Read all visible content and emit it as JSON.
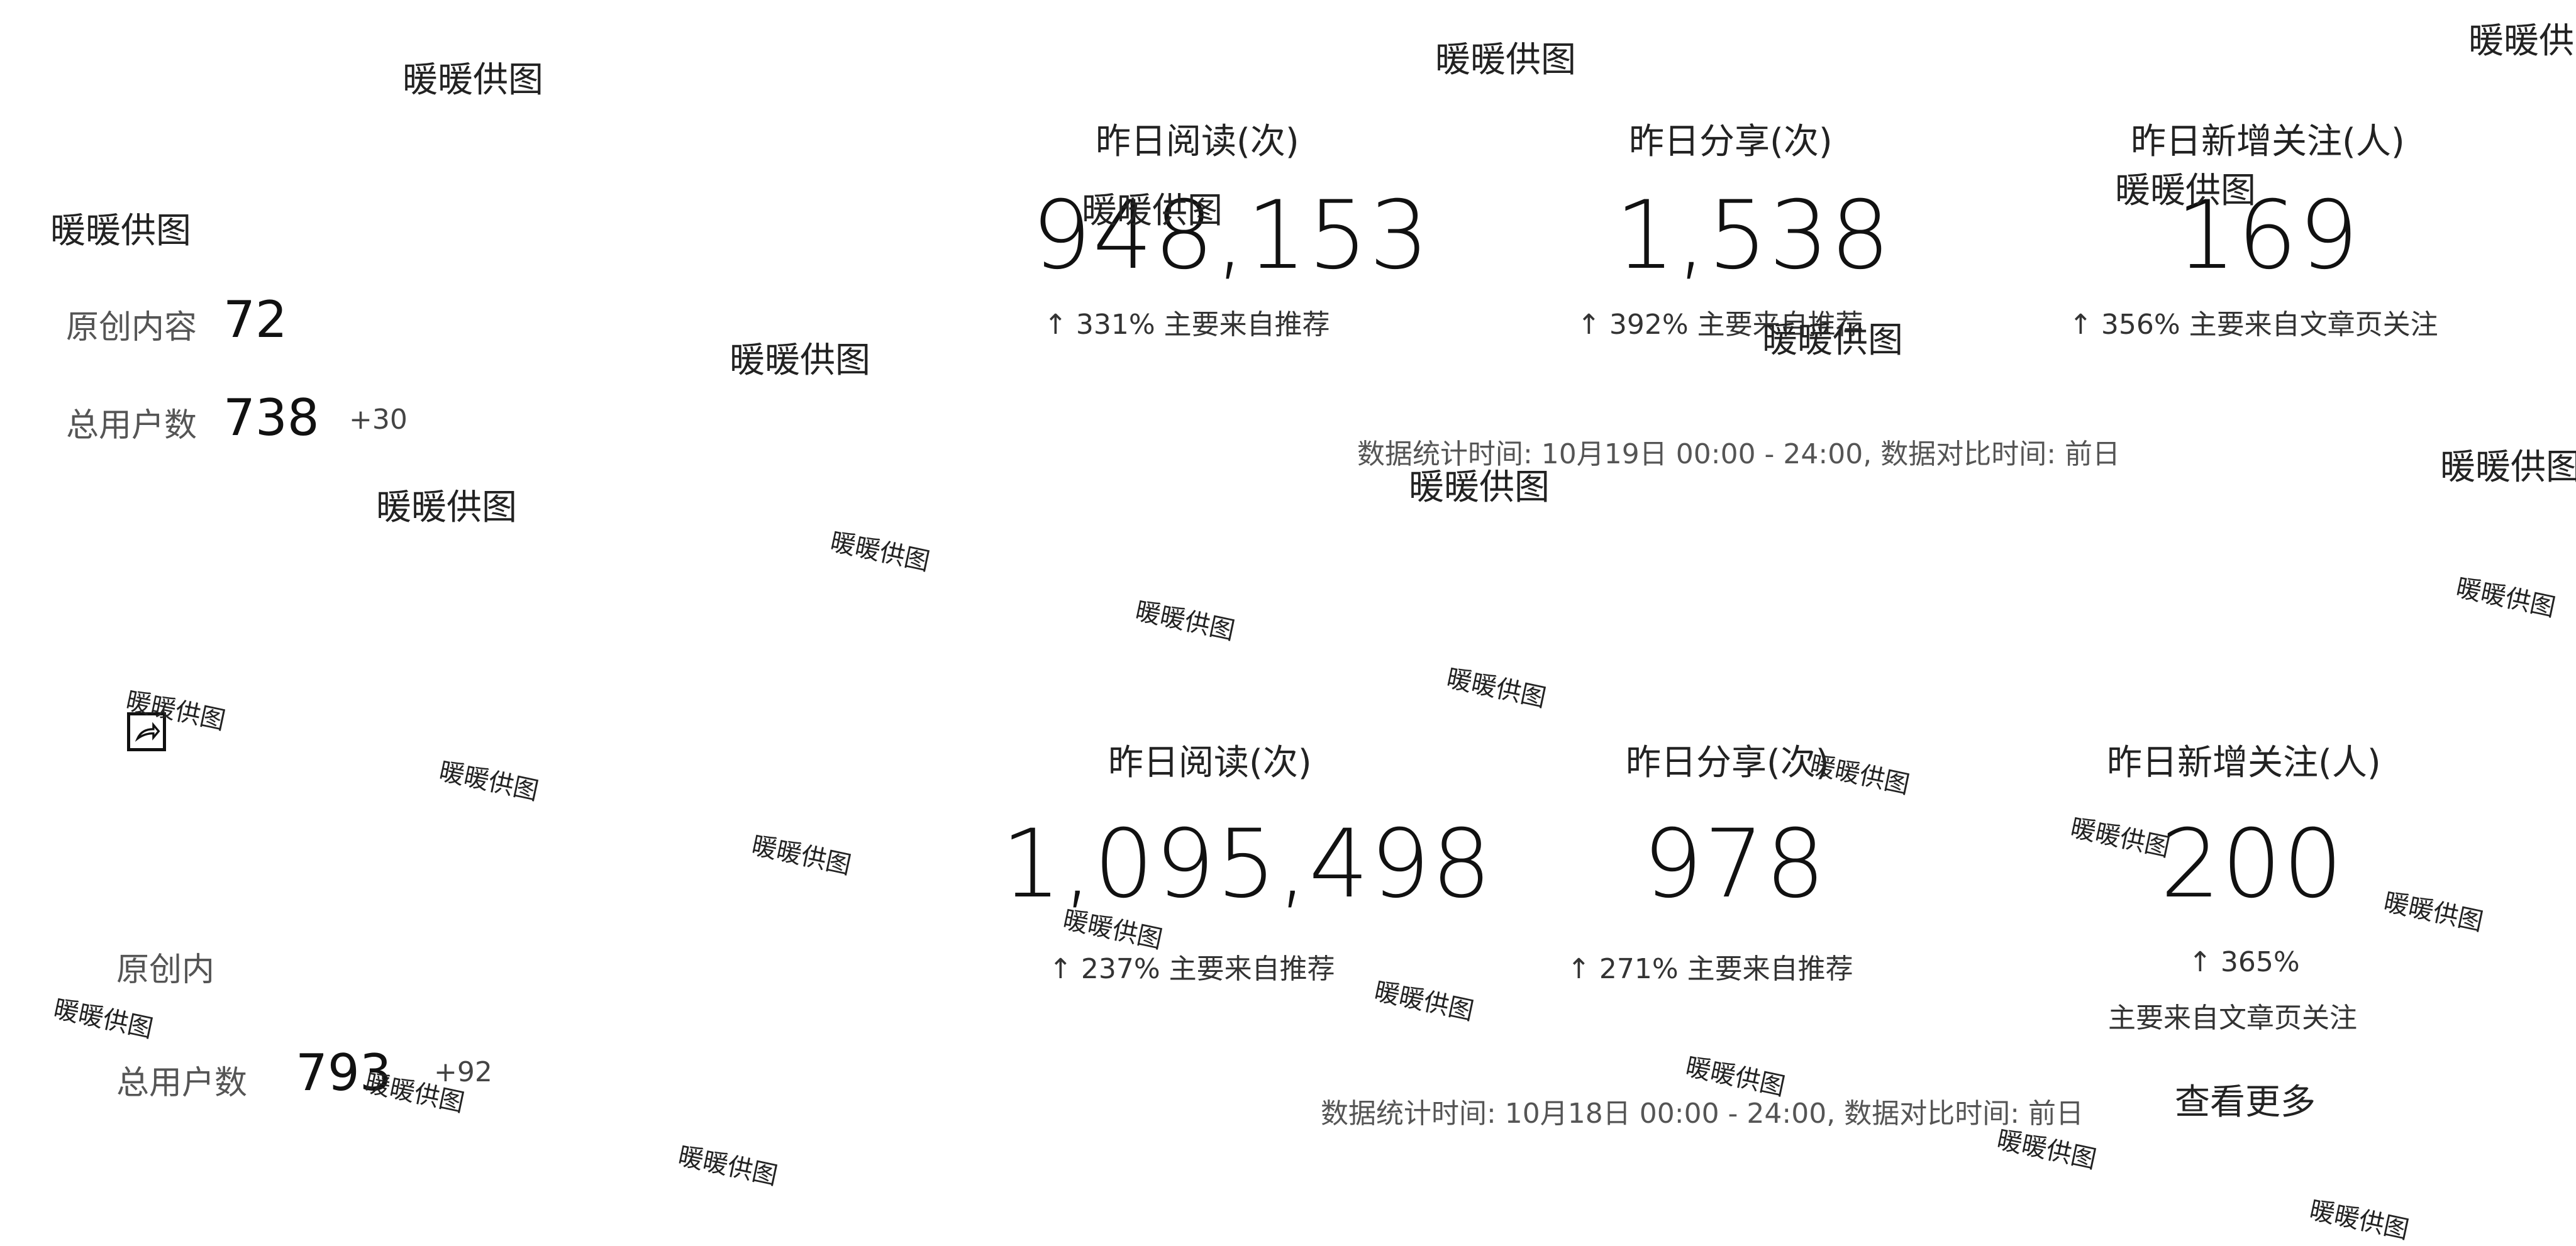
{
  "watermark": "暖暖供图",
  "section1": {
    "left": {
      "original_label": "原创内容",
      "original_value": "72",
      "users_label": "总用户数",
      "users_value": "738",
      "users_delta": "+30"
    },
    "reads": {
      "label": "昨日阅读(次)",
      "value": "948,153",
      "trend": "↑ 331%   主要来自推荐"
    },
    "shares": {
      "label": "昨日分享(次)",
      "value": "1,538",
      "trend": "↑ 392%   主要来自推荐"
    },
    "follows": {
      "label": "昨日新增关注(人)",
      "value": "169",
      "trend": "↑ 356%   主要来自文章页关注"
    },
    "footer": "数据统计时间: 10月19日 00:00 - 24:00, 数据对比时间: 前日"
  },
  "section2": {
    "left": {
      "original_label": "原创内",
      "users_label": "总用户数",
      "users_value": "793",
      "users_delta": "+92"
    },
    "reads": {
      "label": "昨日阅读(次)",
      "value": "1,095,498",
      "trend": "↑ 237%   主要来自推荐"
    },
    "shares": {
      "label": "昨日分享(次)",
      "value": "978",
      "trend": "↑ 271%   主要来自推荐"
    },
    "follows": {
      "label": "昨日新增关注(人)",
      "value": "200",
      "trend_pct": "↑ 365%",
      "trend_src": "主要来自文章页关注"
    },
    "footer": "数据统计时间: 10月18日 00:00 - 24:00, 数据对比时间: 前日",
    "more_link": "查看更多"
  }
}
